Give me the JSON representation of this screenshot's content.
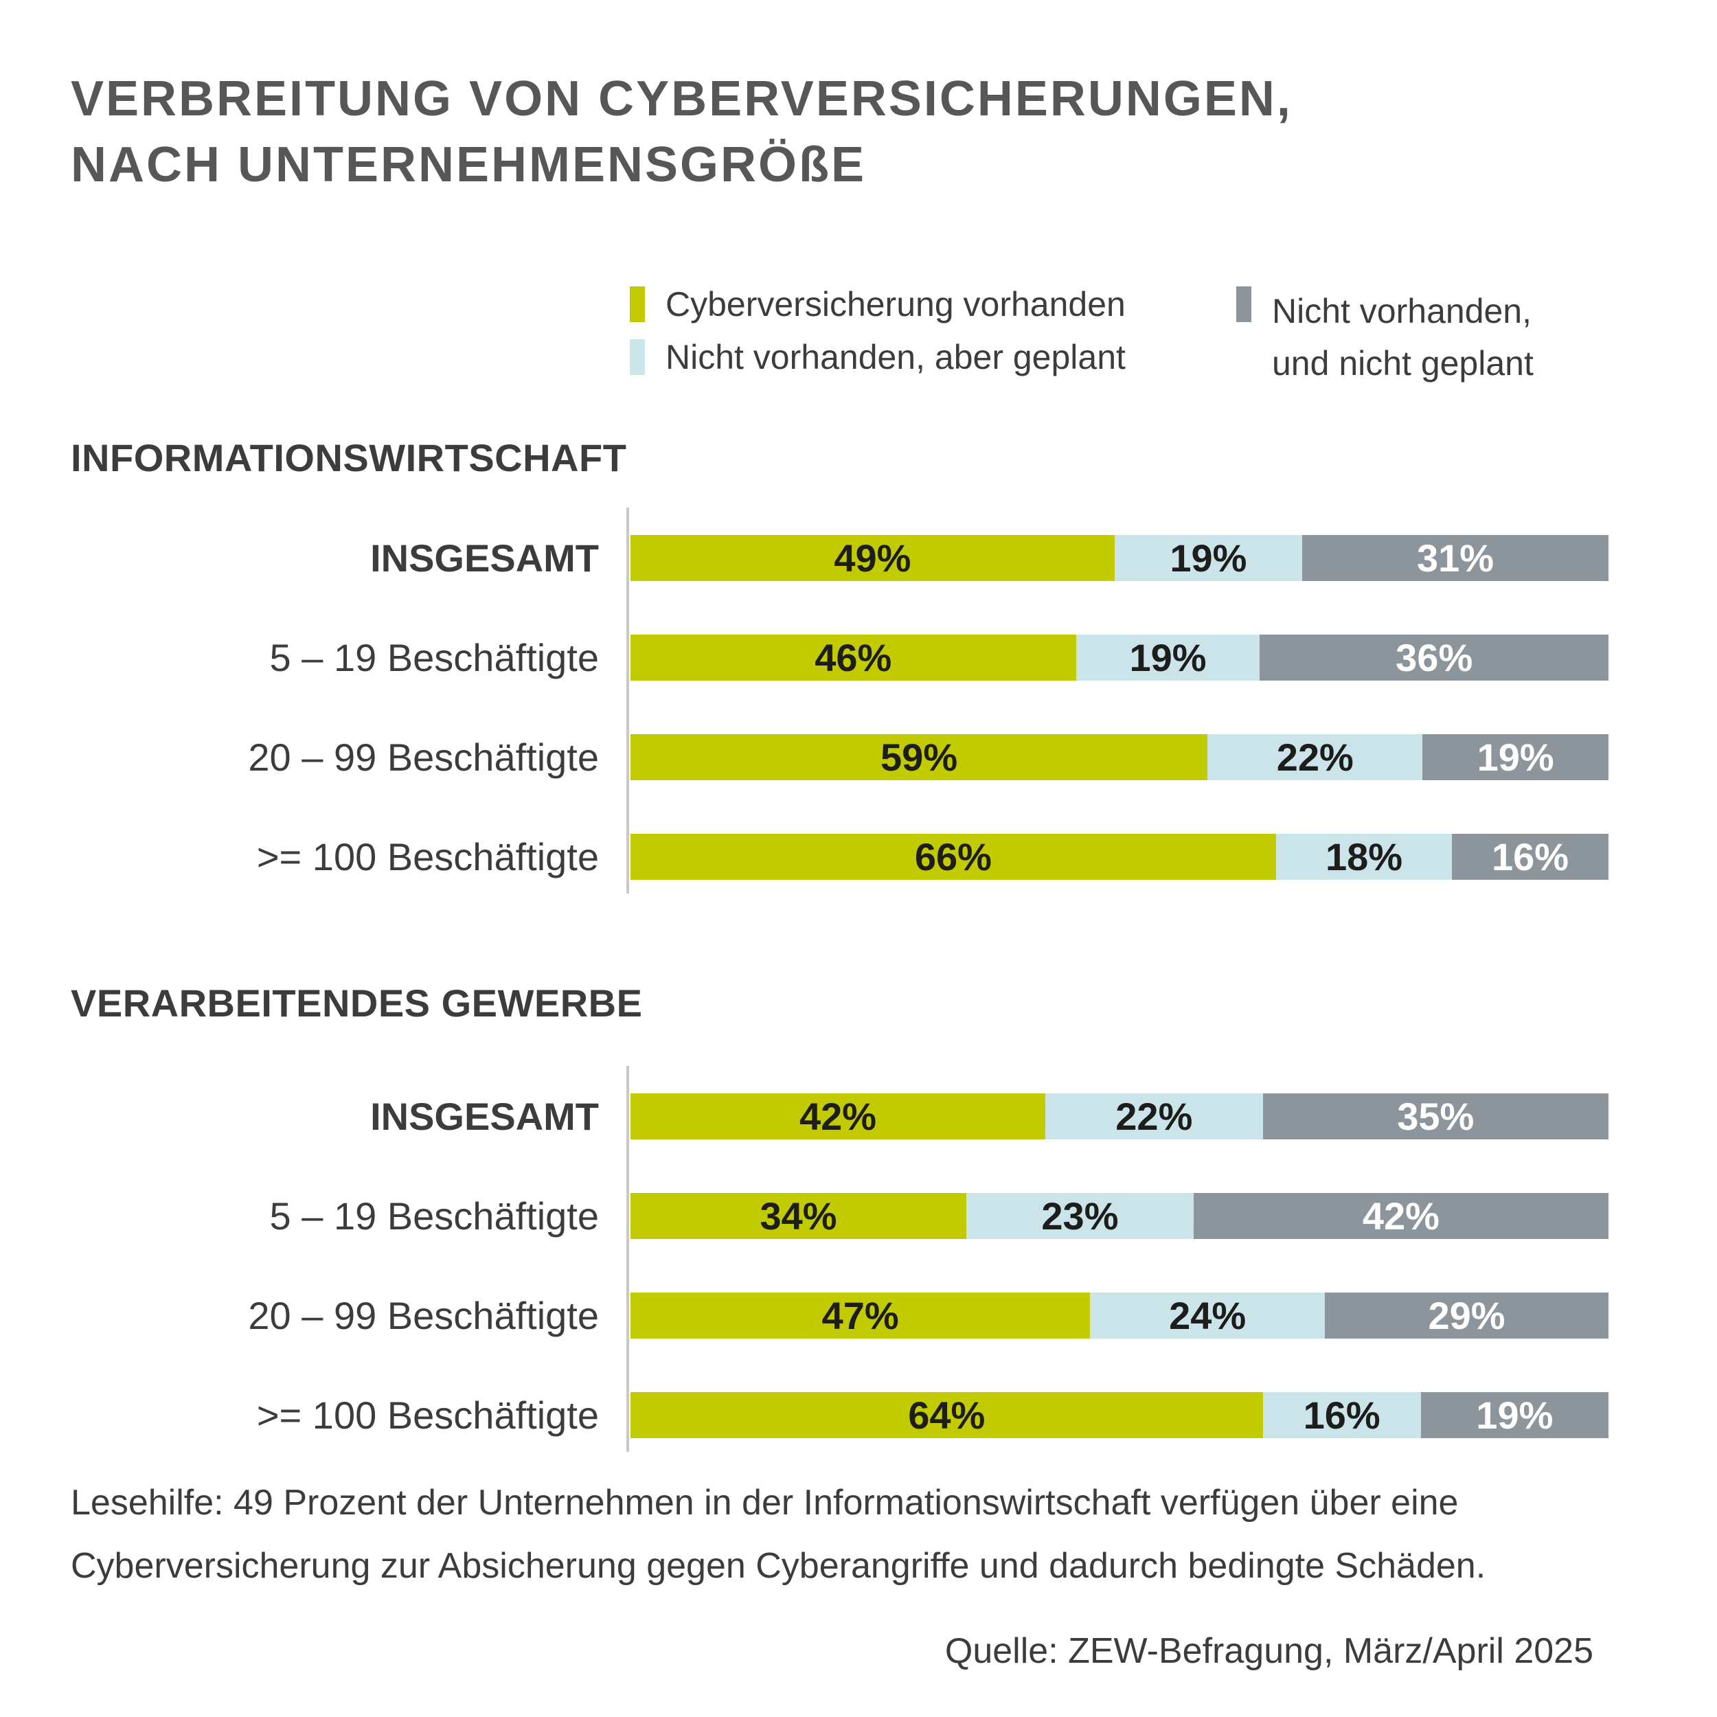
{
  "title": {
    "line1": "VERBREITUNG VON CYBERVERSICHERUNGEN,",
    "line2": "NACH UNTERNEHMENSGRÖßE"
  },
  "legend": {
    "items": [
      {
        "label": "Cyberversicherung vorhanden"
      },
      {
        "label": "Nicht vorhanden, aber geplant"
      },
      {
        "label_line1": "Nicht vorhanden,",
        "label_line2": "und nicht geplant"
      }
    ]
  },
  "colors": {
    "series": [
      "#c1cb00",
      "#cbe4e9",
      "#8c949c"
    ],
    "value_label": "#1d1d1b",
    "value_label_on_dark": "#ffffff",
    "axis_line": "#c8c8c8",
    "title_text": "#575756",
    "body_text": "#3c3c3b"
  },
  "chart_data": {
    "type": "bar",
    "variant": "horizontal-stacked",
    "legend_position": "top",
    "grid": false,
    "value_suffix": "%",
    "series_names": [
      "Cyberversicherung vorhanden",
      "Nicht vorhanden, aber geplant",
      "Nicht vorhanden, und nicht geplant"
    ],
    "emphasis_category": "INSGESAMT",
    "sections": [
      {
        "title": "INFORMATIONSWIRTSCHAFT",
        "categories": [
          "INSGESAMT",
          "5 – 19 Beschäftigte",
          "20 – 99 Beschäftigte",
          ">= 100 Beschäftigte"
        ],
        "series": [
          {
            "name": "Cyberversicherung vorhanden",
            "values": [
              49,
              46,
              59,
              66
            ]
          },
          {
            "name": "Nicht vorhanden, aber geplant",
            "values": [
              19,
              19,
              22,
              18
            ]
          },
          {
            "name": "Nicht vorhanden, und nicht geplant",
            "values": [
              31,
              36,
              19,
              16
            ]
          }
        ]
      },
      {
        "title": "VERARBEITENDES GEWERBE",
        "categories": [
          "INSGESAMT",
          "5 – 19 Beschäftigte",
          "20 – 99 Beschäftigte",
          ">= 100 Beschäftigte"
        ],
        "series": [
          {
            "name": "Cyberversicherung vorhanden",
            "values": [
              42,
              34,
              47,
              64
            ]
          },
          {
            "name": "Nicht vorhanden, aber geplant",
            "values": [
              22,
              23,
              24,
              16
            ]
          },
          {
            "name": "Nicht vorhanden, und nicht geplant",
            "values": [
              35,
              42,
              29,
              19
            ]
          }
        ]
      }
    ]
  },
  "notes": {
    "lesehilfe_line1": "Lesehilfe: 49 Prozent der Unternehmen in der Informationswirtschaft verfügen über eine",
    "lesehilfe_line2": "Cyberversicherung zur Absicherung gegen Cyberangriffe und dadurch bedingte Schäden.",
    "quelle": "Quelle: ZEW-Befragung, März/April 2025"
  }
}
